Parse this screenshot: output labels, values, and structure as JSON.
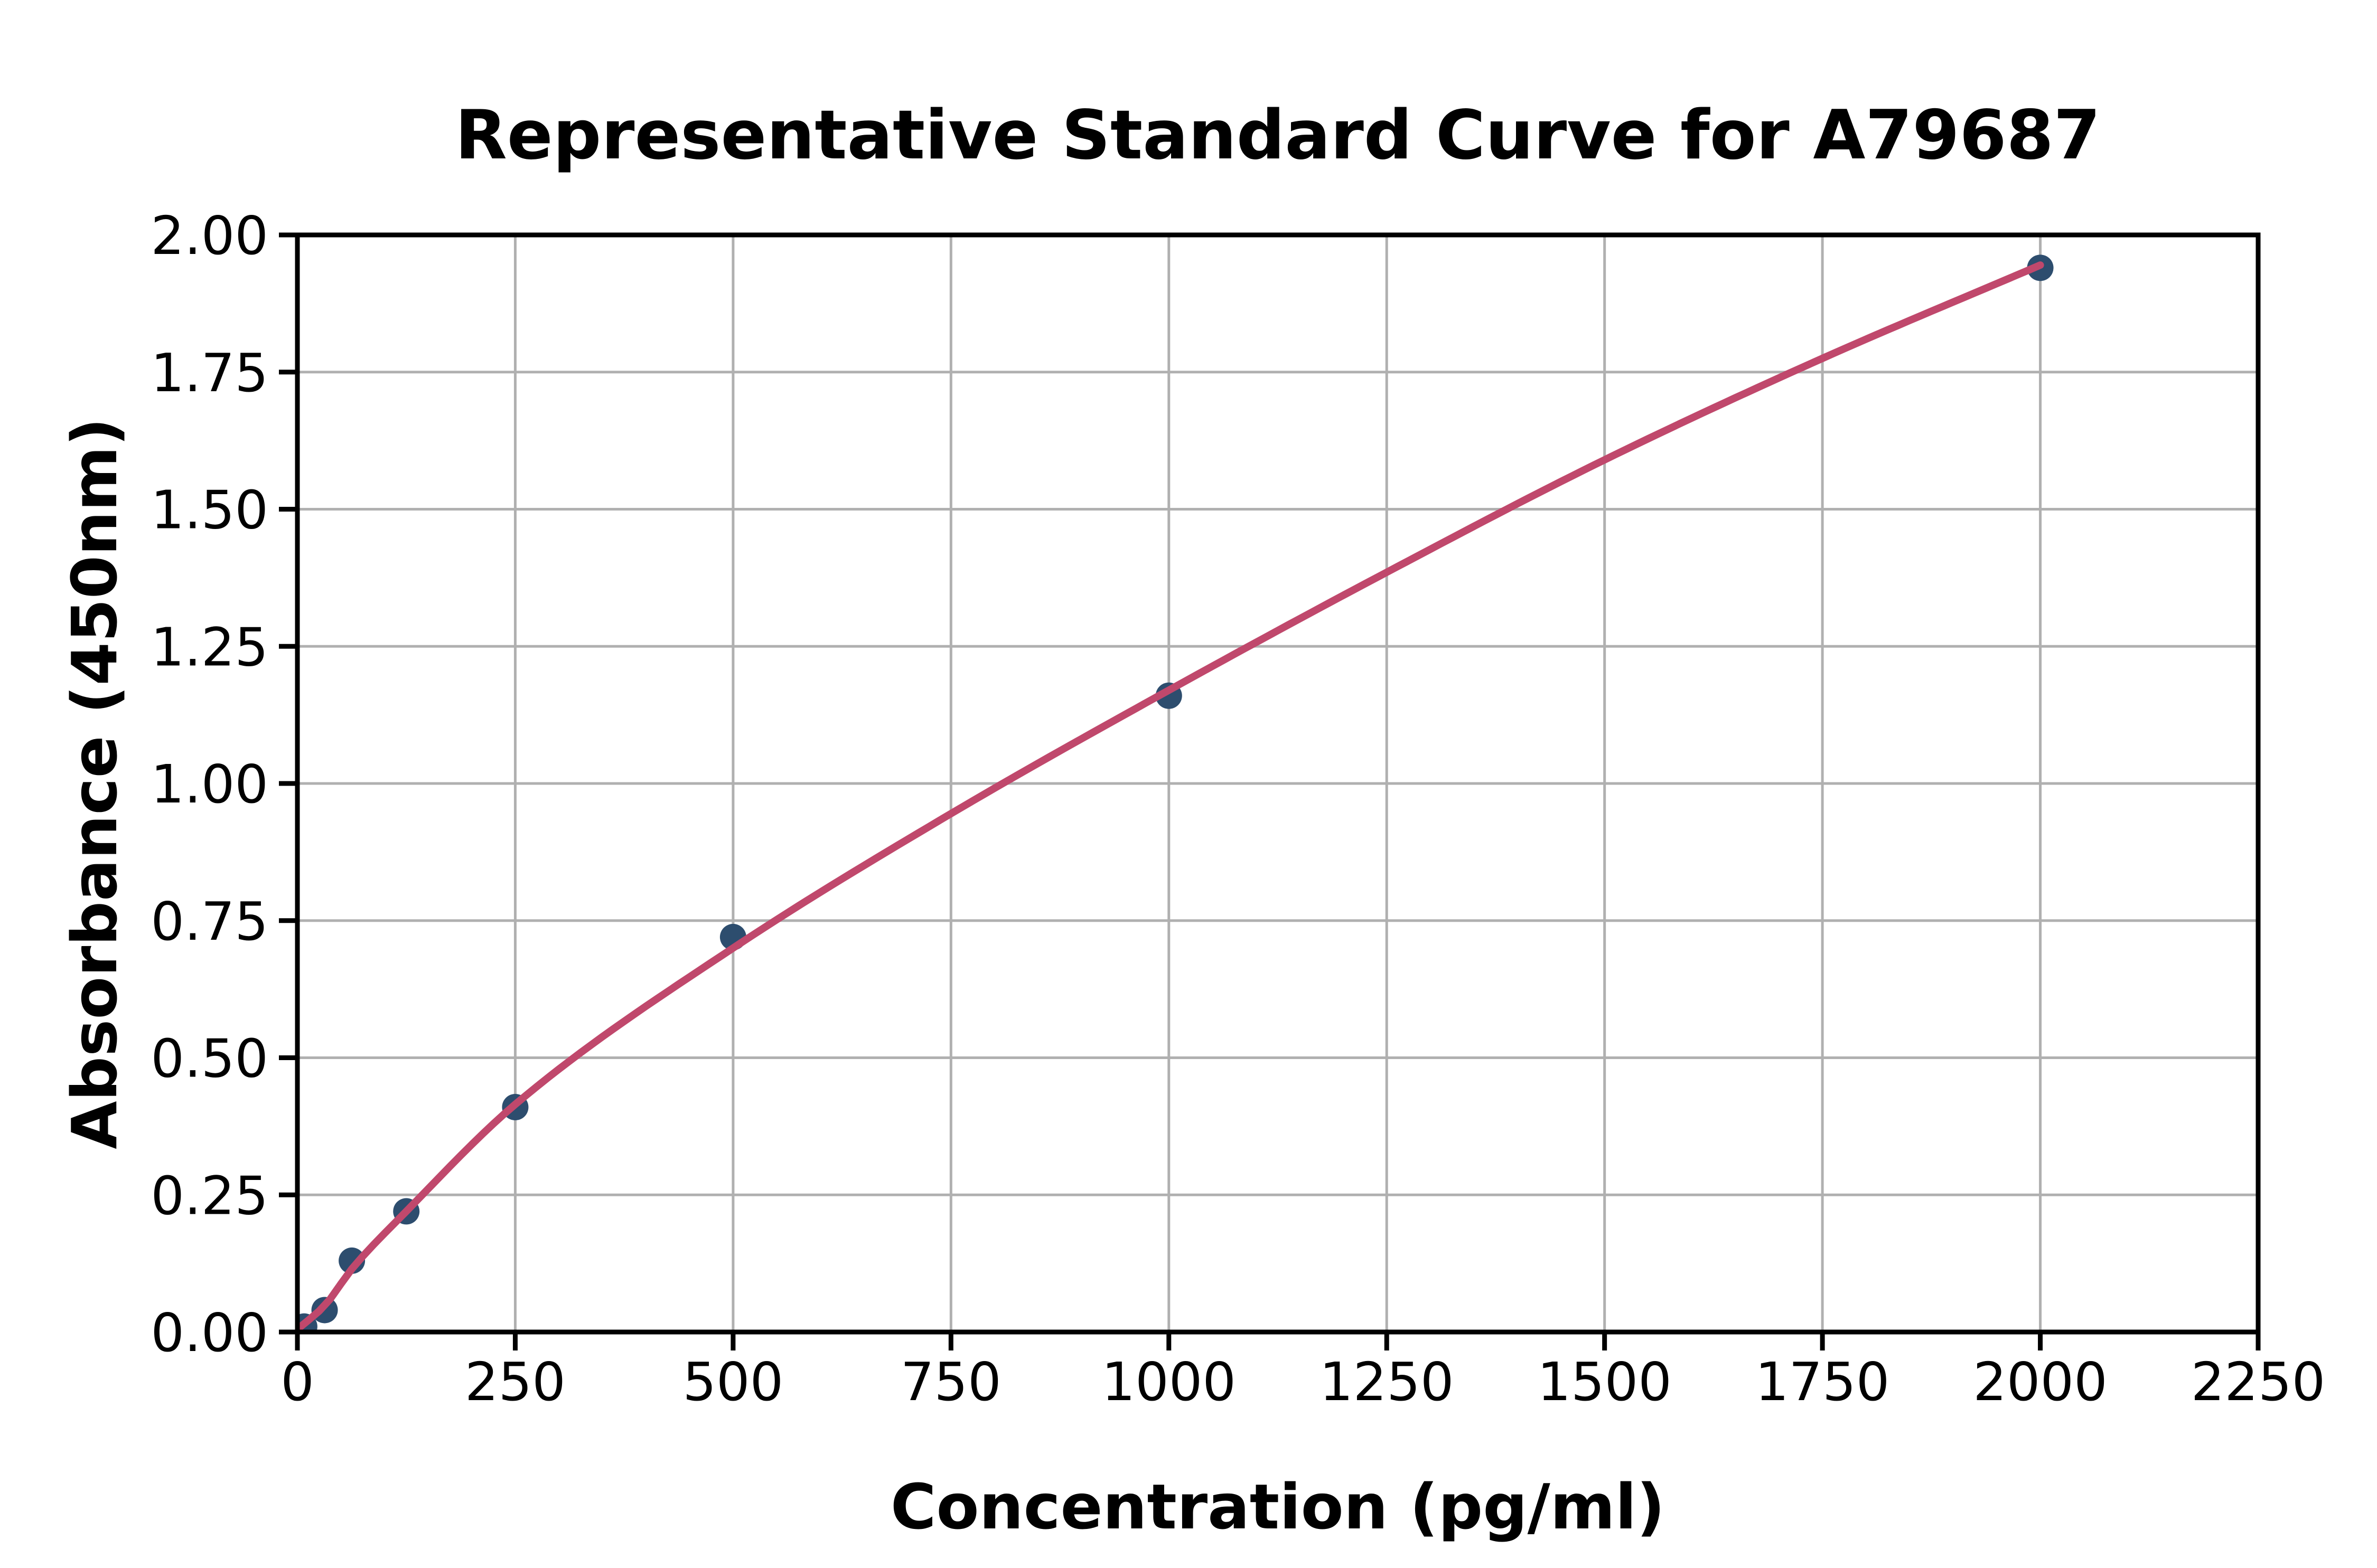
{
  "page": {
    "background": "#ffffff"
  },
  "chart_data": {
    "type": "scatter",
    "title": "Representative Standard Curve for A79687",
    "xlabel": "Concentration (pg/ml)",
    "ylabel": "Absorbance (450nm)",
    "xlim": [
      0,
      2250
    ],
    "ylim": [
      0,
      2.0
    ],
    "xticks": [
      0,
      250,
      500,
      750,
      1000,
      1250,
      1500,
      1750,
      2000,
      2250
    ],
    "xtick_labels": [
      "0",
      "250",
      "500",
      "750",
      "1000",
      "1250",
      "1500",
      "1750",
      "2000",
      "2250"
    ],
    "yticks": [
      0,
      0.25,
      0.5,
      0.75,
      1.0,
      1.25,
      1.5,
      1.75,
      2.0
    ],
    "ytick_labels": [
      "0.00",
      "0.25",
      "0.50",
      "0.75",
      "1.00",
      "1.25",
      "1.50",
      "1.75",
      "2.00"
    ],
    "grid": true,
    "legend": "none",
    "series": [
      {
        "name": "standard-points",
        "type": "scatter",
        "x": [
          7.8,
          31.25,
          62.5,
          125,
          250,
          500,
          1000,
          2000
        ],
        "y": [
          0.01,
          0.04,
          0.13,
          0.22,
          0.41,
          0.72,
          1.16,
          1.94
        ]
      },
      {
        "name": "fitted-curve",
        "type": "line",
        "x": [
          0,
          31.25,
          62.5,
          125,
          250,
          500,
          750,
          1000,
          1250,
          1500,
          1750,
          2000
        ],
        "y": [
          0.005,
          0.048,
          0.115,
          0.22,
          0.415,
          0.7,
          0.945,
          1.17,
          1.385,
          1.59,
          1.775,
          1.945
        ]
      }
    ],
    "colors": {
      "curve": "#c0486c",
      "marker": "#2d4d6e",
      "grid": "#b0b0b0",
      "axis": "#000000",
      "text": "#000000",
      "background": "#ffffff"
    }
  }
}
